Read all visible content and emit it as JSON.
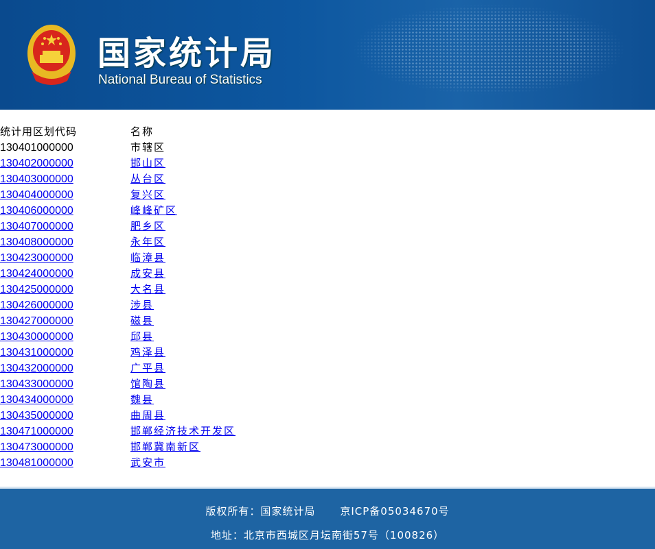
{
  "header": {
    "title_cn": "国家统计局",
    "title_en": "National Bureau of Statistics",
    "emblem_icon": "national-emblem-icon"
  },
  "table": {
    "headers": {
      "code": "统计用区划代码",
      "name": "名称"
    },
    "rows": [
      {
        "code": "130401000000",
        "name": "市辖区",
        "link": false
      },
      {
        "code": "130402000000",
        "name": "邯山区",
        "link": true
      },
      {
        "code": "130403000000",
        "name": "丛台区",
        "link": true
      },
      {
        "code": "130404000000",
        "name": "复兴区",
        "link": true
      },
      {
        "code": "130406000000",
        "name": "峰峰矿区",
        "link": true
      },
      {
        "code": "130407000000",
        "name": "肥乡区",
        "link": true
      },
      {
        "code": "130408000000",
        "name": "永年区",
        "link": true
      },
      {
        "code": "130423000000",
        "name": "临漳县",
        "link": true
      },
      {
        "code": "130424000000",
        "name": "成安县",
        "link": true
      },
      {
        "code": "130425000000",
        "name": "大名县",
        "link": true
      },
      {
        "code": "130426000000",
        "name": "涉县",
        "link": true
      },
      {
        "code": "130427000000",
        "name": "磁县",
        "link": true
      },
      {
        "code": "130430000000",
        "name": "邱县",
        "link": true
      },
      {
        "code": "130431000000",
        "name": "鸡泽县",
        "link": true
      },
      {
        "code": "130432000000",
        "name": "广平县",
        "link": true
      },
      {
        "code": "130433000000",
        "name": "馆陶县",
        "link": true
      },
      {
        "code": "130434000000",
        "name": "魏县",
        "link": true
      },
      {
        "code": "130435000000",
        "name": "曲周县",
        "link": true
      },
      {
        "code": "130471000000",
        "name": "邯郸经济技术开发区",
        "link": true
      },
      {
        "code": "130473000000",
        "name": "邯郸冀南新区",
        "link": true
      },
      {
        "code": "130481000000",
        "name": "武安市",
        "link": true
      }
    ]
  },
  "footer": {
    "copyright": "版权所有：国家统计局",
    "icp": "京ICP备05034670号",
    "address": "地址：北京市西城区月坛南街57号（100826）"
  },
  "colors": {
    "header_blue": "#0d57a0",
    "footer_blue": "#1e64a3",
    "link": "#0000ee"
  }
}
